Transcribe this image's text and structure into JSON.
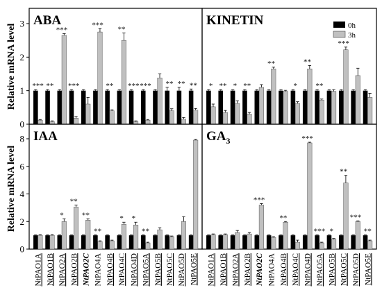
{
  "figure": {
    "ylabel": "Relative mRNA level",
    "legend": [
      {
        "name": "0h",
        "color": "#000000"
      },
      {
        "name": "3h",
        "color": "#c0c0c0"
      }
    ],
    "gene_labels": [
      {
        "label": "NtPAO1A",
        "underline": true,
        "italic": false
      },
      {
        "label": "NtPAO1B",
        "underline": true,
        "italic": false
      },
      {
        "label": "NtPAO2A",
        "underline": true,
        "italic": false
      },
      {
        "label": "NtPAO2B",
        "underline": true,
        "italic": false
      },
      {
        "label": "NtPAO2C",
        "underline": false,
        "italic": true
      },
      {
        "label": "NtPAO4A",
        "underline": false,
        "italic": false
      },
      {
        "label": "NtPAO4B",
        "underline": true,
        "italic": false
      },
      {
        "label": "NtPAO4C",
        "underline": true,
        "italic": false
      },
      {
        "label": "NtPAO4D",
        "underline": true,
        "italic": false
      },
      {
        "label": "NtPAO5A",
        "underline": true,
        "italic": false
      },
      {
        "label": "NtPAO5B",
        "underline": true,
        "italic": false
      },
      {
        "label": "NtPAO5C",
        "underline": true,
        "italic": false
      },
      {
        "label": "NtPAO5D",
        "underline": true,
        "italic": false
      },
      {
        "label": "NtPAO5E",
        "underline": true,
        "italic": false
      }
    ]
  },
  "chart_data": [
    {
      "type": "bar",
      "panel": "top-left",
      "title": "ABA",
      "title_subscript": "",
      "ylim": [
        0,
        3
      ],
      "yticks": [
        0,
        1,
        2,
        3
      ],
      "categories": [
        "NtPAO1A",
        "NtPAO1B",
        "NtPAO2A",
        "NtPAO2B",
        "NtPAO2C",
        "NtPAO4A",
        "NtPAO4B",
        "NtPAO4C",
        "NtPAO4D",
        "NtPAO5A",
        "NtPAO5B",
        "NtPAO5C",
        "NtPAO5D",
        "NtPAO5E"
      ],
      "series": [
        {
          "name": "0h",
          "values": [
            1,
            1,
            1,
            1,
            1,
            1,
            1,
            1,
            1,
            1,
            1,
            1,
            1,
            1
          ],
          "errors": [
            0.03,
            0.03,
            0.03,
            0.03,
            0.03,
            0.03,
            0.03,
            0.03,
            0.03,
            0.03,
            0.03,
            0.1,
            0.1,
            0.05
          ]
        },
        {
          "name": "3h",
          "values": [
            0.12,
            0.08,
            2.65,
            0.18,
            0.6,
            2.75,
            0.4,
            2.5,
            0.08,
            0.12,
            1.38,
            0.4,
            0.15,
            0.42
          ],
          "errors": [
            0.02,
            0.02,
            0.05,
            0.05,
            0.2,
            0.1,
            0.03,
            0.22,
            0.02,
            0.02,
            0.12,
            0.06,
            0.05,
            0.05
          ]
        }
      ],
      "significance": [
        "***",
        "**",
        "***",
        "***",
        "",
        "***",
        "**",
        "**",
        "***",
        "***",
        "",
        "**",
        "**",
        "**"
      ]
    },
    {
      "type": "bar",
      "panel": "top-right",
      "title": "KINETIN",
      "title_subscript": "",
      "ylim": [
        0,
        3
      ],
      "yticks": [],
      "categories": [
        "NtPAO1A",
        "NtPAO1B",
        "NtPAO2A",
        "NtPAO2B",
        "NtPAO2C",
        "NtPAO4A",
        "NtPAO4B",
        "NtPAO4C",
        "NtPAO4D",
        "NtPAO5A",
        "NtPAO5B",
        "NtPAO5C",
        "NtPAO5D",
        "NtPAO5E"
      ],
      "series": [
        {
          "name": "0h",
          "values": [
            1,
            1,
            1,
            1,
            1,
            1,
            1,
            1,
            1,
            1,
            1,
            1,
            1,
            1
          ],
          "errors": [
            0.03,
            0.03,
            0.03,
            0.03,
            0.03,
            0.03,
            0.03,
            0.03,
            0.03,
            0.03,
            0.03,
            0.03,
            0.03,
            0.03
          ]
        },
        {
          "name": "3h",
          "values": [
            0.52,
            0.35,
            0.62,
            0.3,
            1.1,
            1.65,
            0.98,
            0.62,
            1.65,
            0.72,
            0.98,
            2.22,
            1.45,
            0.8
          ],
          "errors": [
            0.08,
            0.06,
            0.08,
            0.05,
            0.08,
            0.05,
            0.03,
            0.05,
            0.1,
            0.03,
            0.05,
            0.08,
            0.22,
            0.12
          ]
        }
      ],
      "significance": [
        "*",
        "**",
        "*",
        "**",
        "",
        "**",
        "",
        "*",
        "**",
        "**",
        "",
        "***",
        "",
        ""
      ]
    },
    {
      "type": "bar",
      "panel": "bottom-left",
      "title": "IAA",
      "title_subscript": "",
      "ylim": [
        0,
        8
      ],
      "yticks": [
        0,
        2,
        4,
        6,
        8
      ],
      "categories": [
        "NtPAO1A",
        "NtPAO1B",
        "NtPAO2A",
        "NtPAO2B",
        "NtPAO2C",
        "NtPAO4A",
        "NtPAO4B",
        "NtPAO4C",
        "NtPAO4D",
        "NtPAO5A",
        "NtPAO5B",
        "NtPAO5C",
        "NtPAO5D",
        "NtPAO5E"
      ],
      "series": [
        {
          "name": "0h",
          "values": [
            1,
            1,
            1,
            1,
            1,
            1,
            1,
            1,
            1,
            1,
            1,
            1,
            1,
            1
          ],
          "errors": [
            0.03,
            0.03,
            0.03,
            0.03,
            0.03,
            0.03,
            0.03,
            0.03,
            0.03,
            0.03,
            0.03,
            0.03,
            0.03,
            0.03
          ]
        },
        {
          "name": "3h",
          "values": [
            1.0,
            1.0,
            2.0,
            3.05,
            2.1,
            0.55,
            0.6,
            1.8,
            1.75,
            0.45,
            1.4,
            0.9,
            2.0,
            7.9
          ],
          "errors": [
            0.05,
            0.05,
            0.2,
            0.15,
            0.1,
            0.05,
            0.05,
            0.15,
            0.2,
            0.05,
            0.15,
            0.05,
            0.35,
            0.05
          ]
        }
      ],
      "significance": [
        "",
        "",
        "*",
        "**",
        "**",
        "**",
        "",
        "*",
        "*",
        "**",
        "",
        "",
        "",
        ""
      ]
    },
    {
      "type": "bar",
      "panel": "bottom-right",
      "title": "GA",
      "title_subscript": "3",
      "ylim": [
        0,
        8
      ],
      "yticks": [],
      "categories": [
        "NtPAO1A",
        "NtPAO1B",
        "NtPAO2A",
        "NtPAO2B",
        "NtPAO2C",
        "NtPAO4A",
        "NtPAO4B",
        "NtPAO4C",
        "NtPAO4D",
        "NtPAO5A",
        "NtPAO5B",
        "NtPAO5C",
        "NtPAO5D",
        "NtPAO5E"
      ],
      "series": [
        {
          "name": "0h",
          "values": [
            1,
            1,
            1,
            1,
            1,
            1,
            1,
            1,
            1,
            1,
            1,
            1,
            1,
            1
          ],
          "errors": [
            0.03,
            0.03,
            0.03,
            0.03,
            0.03,
            0.03,
            0.03,
            0.03,
            0.03,
            0.03,
            0.03,
            0.03,
            0.03,
            0.03
          ]
        },
        {
          "name": "3h",
          "values": [
            1.05,
            1.05,
            1.2,
            1.1,
            3.2,
            0.85,
            1.95,
            0.5,
            7.7,
            0.45,
            0.72,
            4.8,
            2.0,
            0.6
          ],
          "errors": [
            0.05,
            0.05,
            0.15,
            0.1,
            0.1,
            0.05,
            0.05,
            0.15,
            0.05,
            0.05,
            0.05,
            0.55,
            0.05,
            0.05
          ]
        }
      ],
      "significance": [
        "",
        "",
        "",
        "",
        "***",
        "",
        "**",
        "",
        "***",
        "***",
        "*",
        "**",
        "***",
        "**"
      ]
    }
  ]
}
